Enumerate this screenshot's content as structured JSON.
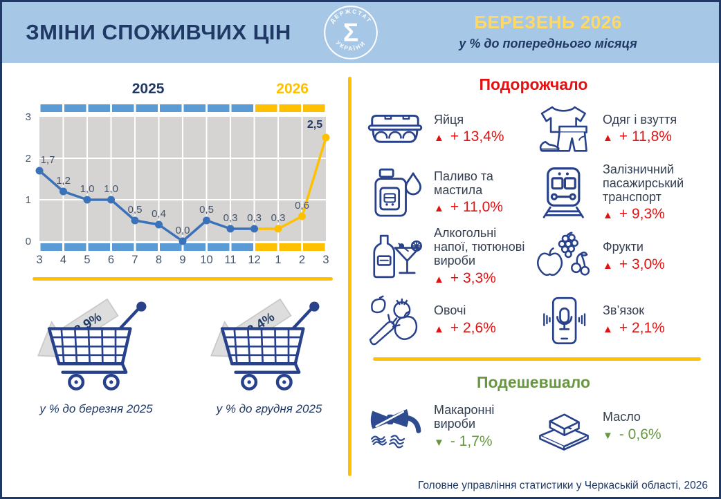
{
  "header": {
    "title": "ЗМІНИ СПОЖИВЧИХ ЦІН",
    "logo_top": "ДЕРЖСТАТ",
    "logo_bottom": "УКРАЇНИ",
    "logo_symbol": "Σ",
    "month": "БЕРЕЗЕНЬ 2026",
    "subtitle": "у % до попереднього місяця"
  },
  "chart_data": {
    "type": "line",
    "title": "Зміни споживчих цін, у % до попереднього місяця",
    "x": [
      "3",
      "4",
      "5",
      "6",
      "7",
      "8",
      "9",
      "10",
      "11",
      "12",
      "1",
      "2",
      "3"
    ],
    "values": [
      1.7,
      1.2,
      1.0,
      1.0,
      0.5,
      0.4,
      0.0,
      0.5,
      0.3,
      0.3,
      0.3,
      0.6,
      2.5
    ],
    "labels": [
      "1,7",
      "1,2",
      "1,0",
      "1,0",
      "0,5",
      "0,4",
      "0,0",
      "0,5",
      "0,3",
      "0,3",
      "0,3",
      "0,6",
      "2,5"
    ],
    "ylim": [
      0,
      3
    ],
    "yticks": [
      0,
      1,
      2,
      3
    ],
    "year_left": "2025",
    "year_right": "2026",
    "split_index": 9,
    "grid": true,
    "colors": {
      "y2025": "#5B9BD5",
      "y2026": "#FFC000",
      "line2025": "#3A72B9",
      "plot_bg": "#D6D3D3",
      "grid": "#FFFFFF",
      "label": "#44546A",
      "label_last": "#1F3864"
    }
  },
  "left": {
    "carts": [
      {
        "icon": "shopping-cart-icon",
        "pct": "8,9%",
        "caption": "у % до березня 2025"
      },
      {
        "icon": "shopping-cart-icon",
        "pct": "3,4%",
        "caption": "у % до грудня 2025"
      }
    ]
  },
  "expensive": {
    "heading": "Подорожчало",
    "marker": "▲",
    "items": [
      {
        "icon": "eggs-icon",
        "label": "Яйця",
        "value": "+ 13,4%"
      },
      {
        "icon": "clothing-icon",
        "label": "Одяг і взуття",
        "value": "+ 11,8%"
      },
      {
        "icon": "fuel-icon",
        "label": "Паливо та мастила",
        "value": "+ 11,0%"
      },
      {
        "icon": "train-icon",
        "label": "Залізничний пасажирський транспорт",
        "value": "+ 9,3%"
      },
      {
        "icon": "alcohol-icon",
        "label": "Алкогольні напої, тютюнові вироби",
        "value": "+ 3,3%"
      },
      {
        "icon": "fruits-icon",
        "label": "Фрукти",
        "value": "+ 3,0%"
      },
      {
        "icon": "vegetables-icon",
        "label": "Овочі",
        "value": "+ 2,6%"
      },
      {
        "icon": "phone-icon",
        "label": "Зв’язок",
        "value": "+ 2,1%"
      }
    ]
  },
  "cheaper": {
    "heading": "Подешевшало",
    "marker": "▼",
    "items": [
      {
        "icon": "pasta-icon",
        "label": "Макаронні вироби",
        "value": "- 1,7%"
      },
      {
        "icon": "butter-icon",
        "label": "Масло",
        "value": "- 0,6%"
      }
    ]
  },
  "footer": {
    "source": "Головне управління статистики у Черкаській області, 2026"
  },
  "colors": {
    "accent_yellow": "#FFC000",
    "header_bg": "#A7C7E6",
    "navy": "#1F3864",
    "red": "#E21212",
    "green": "#67983F",
    "icon_navy": "#27418A"
  }
}
